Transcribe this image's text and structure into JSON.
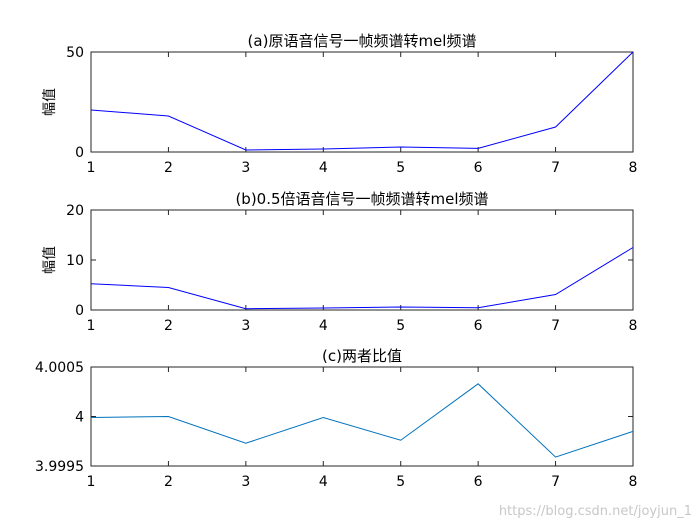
{
  "chart_data": [
    {
      "type": "line",
      "title": "(a)原语音信号一帧频谱转mel频谱",
      "xlabel": "",
      "ylabel": "幅值",
      "x": [
        1,
        2,
        3,
        4,
        5,
        6,
        7,
        8
      ],
      "xticks": [
        "1",
        "2",
        "3",
        "4",
        "5",
        "6",
        "7",
        "8"
      ],
      "xlim": [
        1,
        8
      ],
      "ylim": [
        0,
        50
      ],
      "yticks": [
        0,
        50
      ],
      "ytick_labels": [
        "0",
        "50"
      ],
      "grid": false,
      "series": [
        {
          "values": [
            21,
            18,
            1,
            1.5,
            2.5,
            1.8,
            12.5,
            50
          ],
          "color": "#0000ff"
        }
      ]
    },
    {
      "type": "line",
      "title": "(b)0.5倍语音信号一帧频谱转mel频谱",
      "xlabel": "",
      "ylabel": "幅值",
      "x": [
        1,
        2,
        3,
        4,
        5,
        6,
        7,
        8
      ],
      "xticks": [
        "1",
        "2",
        "3",
        "4",
        "5",
        "6",
        "7",
        "8"
      ],
      "xlim": [
        1,
        8
      ],
      "ylim": [
        0,
        20
      ],
      "yticks": [
        0,
        10,
        20
      ],
      "ytick_labels": [
        "0",
        "10",
        "20"
      ],
      "grid": false,
      "series": [
        {
          "values": [
            5.25,
            4.5,
            0.25,
            0.4,
            0.6,
            0.45,
            3.1,
            12.5
          ],
          "color": "#0000ff"
        }
      ]
    },
    {
      "type": "line",
      "title": "(c)两者比值",
      "xlabel": "",
      "ylabel": "",
      "x": [
        1,
        2,
        3,
        4,
        5,
        6,
        7,
        8
      ],
      "xticks": [
        "1",
        "2",
        "3",
        "4",
        "5",
        "6",
        "7",
        "8"
      ],
      "xlim": [
        1,
        8
      ],
      "ylim": [
        3.9995,
        4.0005
      ],
      "yticks": [
        3.9995,
        4,
        4.0005
      ],
      "ytick_labels": [
        "3.9995",
        "4",
        "4.0005"
      ],
      "grid": false,
      "series": [
        {
          "values": [
            3.99999,
            4.0,
            3.99973,
            3.99999,
            3.99976,
            4.00033,
            3.99959,
            3.99985
          ],
          "color": "#0072bd"
        }
      ]
    }
  ],
  "watermark": "https://blog.csdn.net/joyjun_1"
}
